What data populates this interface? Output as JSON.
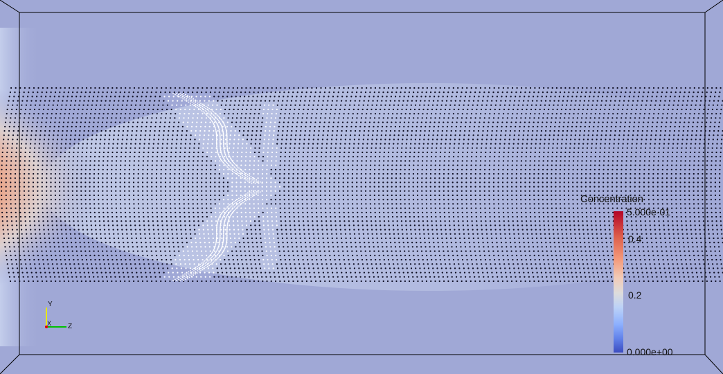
{
  "colorbar": {
    "title": "Concentration",
    "max_label": "5.000e-01",
    "tick_04": "0.4",
    "tick_02": "0.2",
    "min_label": "0.000e+00",
    "colors": [
      "#b40426",
      "#dd5f4b",
      "#f49a7b",
      "#f2cbb7",
      "#dddcdc",
      "#bcd2f7",
      "#8db0fe",
      "#6282ea",
      "#3b4cc0"
    ]
  },
  "orientation_axes": {
    "y_label": "Y",
    "x_label": "X",
    "z_label": "Z",
    "y_color": "#e8e800",
    "z_color": "#00c000",
    "x_color": "#e00000"
  },
  "render": {
    "background_color": "#a0a8d6",
    "outline_color": "#000000",
    "particle_color": "#0a0a1e",
    "front_particle_color": "#ffffff"
  }
}
